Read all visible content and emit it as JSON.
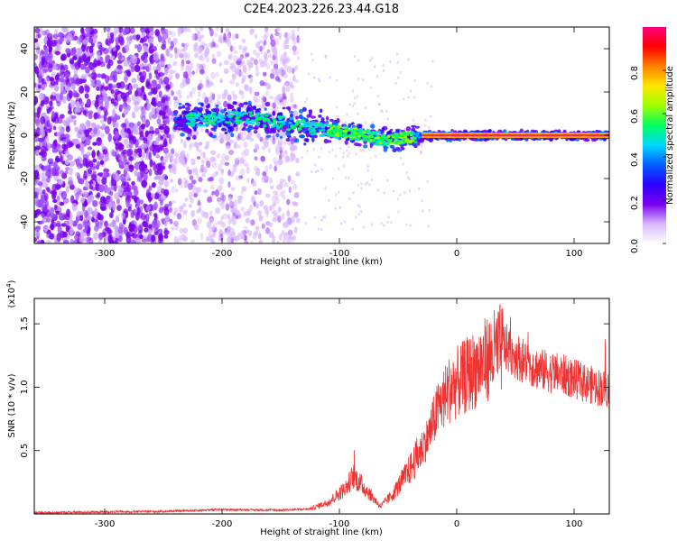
{
  "title": "C2E4.2023.226.23.44.G18",
  "chart_data": [
    {
      "type": "heatmap",
      "name": "spectrogram",
      "xlabel": "Height of straight line (km)",
      "ylabel": "Frequency (Hz)",
      "xlim": [
        -360,
        130
      ],
      "ylim": [
        -50,
        50
      ],
      "xticks": [
        -300,
        -200,
        -100,
        0,
        100
      ],
      "yticks": [
        -40,
        -20,
        0,
        20,
        40
      ],
      "colorbar": {
        "label": "Normalized spectral amplitude",
        "range": [
          0,
          1
        ],
        "ticks": [
          0.0,
          0.2,
          0.4,
          0.6,
          0.8
        ],
        "colors": [
          "#ffffff",
          "#d8b8ff",
          "#7a00ee",
          "#2b00ff",
          "#0060ff",
          "#00d8ff",
          "#00ff60",
          "#9cff00",
          "#ffe800",
          "#ff8000",
          "#ff0000",
          "#ff0080"
        ]
      },
      "features": {
        "noise_dense_region_x": [
          -360,
          -245
        ],
        "noise_light_region_x": [
          -245,
          -135
        ],
        "carrier_trend": [
          {
            "x": -240,
            "y": 7
          },
          {
            "x": -180,
            "y": 8
          },
          {
            "x": -140,
            "y": 5
          },
          {
            "x": -120,
            "y": 3
          },
          {
            "x": -90,
            "y": 1
          },
          {
            "x": -60,
            "y": -2
          },
          {
            "x": -40,
            "y": -1
          },
          {
            "x": -20,
            "y": 0
          },
          {
            "x": 0,
            "y": 0
          },
          {
            "x": 130,
            "y": 0
          }
        ]
      }
    },
    {
      "type": "line",
      "name": "snr",
      "xlabel": "Height of straight line (km)",
      "ylabel": "SNR (10 * v/v)",
      "yscale_label": "(x10",
      "yscale_exp": "4",
      "xlim": [
        -360,
        130
      ],
      "ylim": [
        0,
        1.7
      ],
      "xticks": [
        -300,
        -200,
        -100,
        0,
        100
      ],
      "yticks": [
        0.5,
        1.0,
        1.5
      ],
      "color": "#ee3333",
      "trend": [
        {
          "x": -360,
          "y": 0.01
        },
        {
          "x": -250,
          "y": 0.02
        },
        {
          "x": -200,
          "y": 0.035
        },
        {
          "x": -150,
          "y": 0.03
        },
        {
          "x": -125,
          "y": 0.04
        },
        {
          "x": -110,
          "y": 0.09
        },
        {
          "x": -95,
          "y": 0.2
        },
        {
          "x": -88,
          "y": 0.3
        },
        {
          "x": -80,
          "y": 0.22
        },
        {
          "x": -65,
          "y": 0.06
        },
        {
          "x": -55,
          "y": 0.15
        },
        {
          "x": -40,
          "y": 0.35
        },
        {
          "x": -25,
          "y": 0.6
        },
        {
          "x": -15,
          "y": 0.85
        },
        {
          "x": -5,
          "y": 1.0
        },
        {
          "x": 10,
          "y": 1.1
        },
        {
          "x": 25,
          "y": 1.22
        },
        {
          "x": 40,
          "y": 1.32
        },
        {
          "x": 55,
          "y": 1.22
        },
        {
          "x": 70,
          "y": 1.14
        },
        {
          "x": 90,
          "y": 1.1
        },
        {
          "x": 110,
          "y": 1.03
        },
        {
          "x": 130,
          "y": 0.98
        }
      ]
    }
  ]
}
